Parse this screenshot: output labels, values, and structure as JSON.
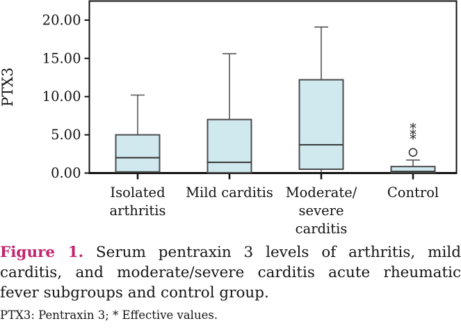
{
  "figure": {
    "caption_label": "Figure 1.",
    "caption_text": " Serum pentraxin 3 levels of arthritis, mild carditis, and moderate/severe carditis acute rheumatic fever subgroups and control group.",
    "footnote": "PTX3: Pentraxin 3; * Effective values.",
    "accent_color": "#c2256e"
  },
  "chart_data": {
    "type": "boxplot",
    "title": "",
    "xlabel": "",
    "ylabel": "PTX3",
    "ylim": [
      0,
      22.5
    ],
    "yticks": [
      0,
      5,
      10,
      15,
      20
    ],
    "ytick_labels": [
      "0.00",
      "5.00",
      "10.00",
      "15.00",
      "20.00"
    ],
    "grid": false,
    "legend": "none",
    "categories": [
      "Isolated arthritis",
      "Mild carditis",
      "Moderate/severe carditis",
      "Control"
    ],
    "category_label_lines": [
      [
        "Isolated",
        "arthritis"
      ],
      [
        "Mild carditis"
      ],
      [
        "Moderate/",
        "severe",
        "carditis"
      ],
      [
        "Control"
      ]
    ],
    "colors": {
      "box_fill": "#cfe9ef",
      "box_stroke": "#4a4a4a",
      "median_stroke": "#333333",
      "whisker_stroke": "#555555",
      "axis_stroke": "#111111",
      "outlier_stroke": "#333333"
    },
    "series": [
      {
        "name": "Isolated arthritis",
        "whisker_low": 0.15,
        "q1": 0.15,
        "median": 2.0,
        "q3": 5.0,
        "whisker_high": 10.2,
        "outliers": [],
        "extremes": []
      },
      {
        "name": "Mild carditis",
        "whisker_low": 0.05,
        "q1": 0.05,
        "median": 1.4,
        "q3": 7.0,
        "whisker_high": 15.6,
        "outliers": [],
        "extremes": []
      },
      {
        "name": "Moderate/severe carditis",
        "whisker_low": 0.1,
        "q1": 0.5,
        "median": 3.7,
        "q3": 12.2,
        "whisker_high": 19.1,
        "outliers": [],
        "extremes": []
      },
      {
        "name": "Control",
        "whisker_low": 0.05,
        "q1": 0.05,
        "median": 0.2,
        "q3": 0.85,
        "whisker_high": 1.7,
        "outliers": [
          2.7
        ],
        "extremes": [
          5.9,
          5.1,
          4.5
        ]
      }
    ]
  }
}
